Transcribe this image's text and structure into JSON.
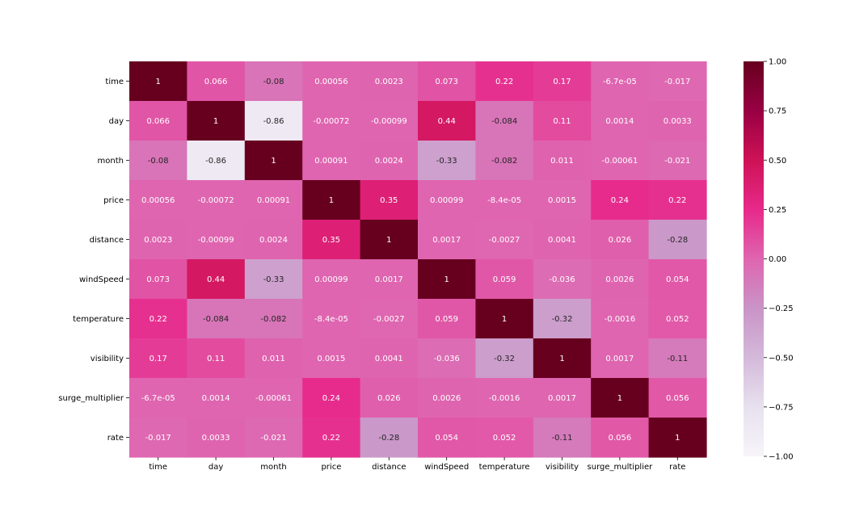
{
  "chart_data": {
    "type": "heatmap",
    "title": "",
    "xlabel": "",
    "ylabel": "",
    "labels": [
      "time",
      "day",
      "month",
      "price",
      "distance",
      "windSpeed",
      "temperature",
      "visibility",
      "surge_multiplier",
      "rate"
    ],
    "values": [
      [
        1,
        0.066,
        -0.08,
        0.00056,
        0.0023,
        0.073,
        0.22,
        0.17,
        -6.7e-05,
        -0.017
      ],
      [
        0.066,
        1,
        -0.86,
        -0.00072,
        -0.00099,
        0.44,
        -0.084,
        0.11,
        0.0014,
        0.0033
      ],
      [
        -0.08,
        -0.86,
        1,
        0.00091,
        0.0024,
        -0.33,
        -0.082,
        0.011,
        -0.00061,
        -0.021
      ],
      [
        0.00056,
        -0.00072,
        0.00091,
        1,
        0.35,
        0.00099,
        -8.4e-05,
        0.0015,
        0.24,
        0.22
      ],
      [
        0.0023,
        -0.00099,
        0.0024,
        0.35,
        1,
        0.0017,
        -0.0027,
        0.0041,
        0.026,
        -0.28
      ],
      [
        0.073,
        0.44,
        -0.33,
        0.00099,
        0.0017,
        1,
        0.059,
        -0.036,
        0.0026,
        0.054
      ],
      [
        0.22,
        -0.084,
        -0.082,
        -8.4e-05,
        -0.0027,
        0.059,
        1,
        -0.32,
        -0.0016,
        0.052
      ],
      [
        0.17,
        0.11,
        0.011,
        0.0015,
        0.0041,
        -0.036,
        -0.32,
        1,
        0.0017,
        -0.11
      ],
      [
        -6.7e-05,
        0.0014,
        -0.00061,
        0.24,
        0.026,
        0.0026,
        -0.0016,
        0.0017,
        1,
        0.056
      ],
      [
        -0.017,
        0.0033,
        -0.021,
        0.22,
        -0.28,
        0.054,
        0.052,
        -0.11,
        0.056,
        1
      ]
    ],
    "annotations": [
      [
        "1",
        "0.066",
        "-0.08",
        "0.00056",
        "0.0023",
        "0.073",
        "0.22",
        "0.17",
        "-6.7e-05",
        "-0.017"
      ],
      [
        "0.066",
        "1",
        "-0.86",
        "-0.00072",
        "-0.00099",
        "0.44",
        "-0.084",
        "0.11",
        "0.0014",
        "0.0033"
      ],
      [
        "-0.08",
        "-0.86",
        "1",
        "0.00091",
        "0.0024",
        "-0.33",
        "-0.082",
        "0.011",
        "-0.00061",
        "-0.021"
      ],
      [
        "0.00056",
        "-0.00072",
        "0.00091",
        "1",
        "0.35",
        "0.00099",
        "-8.4e-05",
        "0.0015",
        "0.24",
        "0.22"
      ],
      [
        "0.0023",
        "-0.00099",
        "0.0024",
        "0.35",
        "1",
        "0.0017",
        "-0.0027",
        "0.0041",
        "0.026",
        "-0.28"
      ],
      [
        "0.073",
        "0.44",
        "-0.33",
        "0.00099",
        "0.0017",
        "1",
        "0.059",
        "-0.036",
        "0.0026",
        "0.054"
      ],
      [
        "0.22",
        "-0.084",
        "-0.082",
        "-8.4e-05",
        "-0.0027",
        "0.059",
        "1",
        "-0.32",
        "-0.0016",
        "0.052"
      ],
      [
        "0.17",
        "0.11",
        "0.011",
        "0.0015",
        "0.0041",
        "-0.036",
        "-0.32",
        "1",
        "0.0017",
        "-0.11"
      ],
      [
        "-6.7e-05",
        "0.0014",
        "-0.00061",
        "0.24",
        "0.026",
        "0.0026",
        "-0.0016",
        "0.0017",
        "1",
        "0.056"
      ],
      [
        "-0.017",
        "0.0033",
        "-0.021",
        "0.22",
        "-0.28",
        "0.054",
        "0.052",
        "-0.11",
        "0.056",
        "1"
      ]
    ],
    "colorbar": {
      "range": [
        -1,
        1
      ],
      "ticks": [
        "1.00",
        "0.75",
        "0.50",
        "0.25",
        "0.00",
        "−0.25",
        "−0.50",
        "−0.75",
        "−1.00"
      ],
      "tick_values": [
        1,
        0.75,
        0.5,
        0.25,
        0,
        -0.25,
        -0.5,
        -0.75,
        -1
      ]
    },
    "colormap": "PuRd",
    "colormap_stops": [
      "#f7f4f9",
      "#e7e1ef",
      "#d4b9da",
      "#c994c7",
      "#df65b0",
      "#e7298a",
      "#ce1256",
      "#980043",
      "#67001f"
    ],
    "grid": false
  }
}
